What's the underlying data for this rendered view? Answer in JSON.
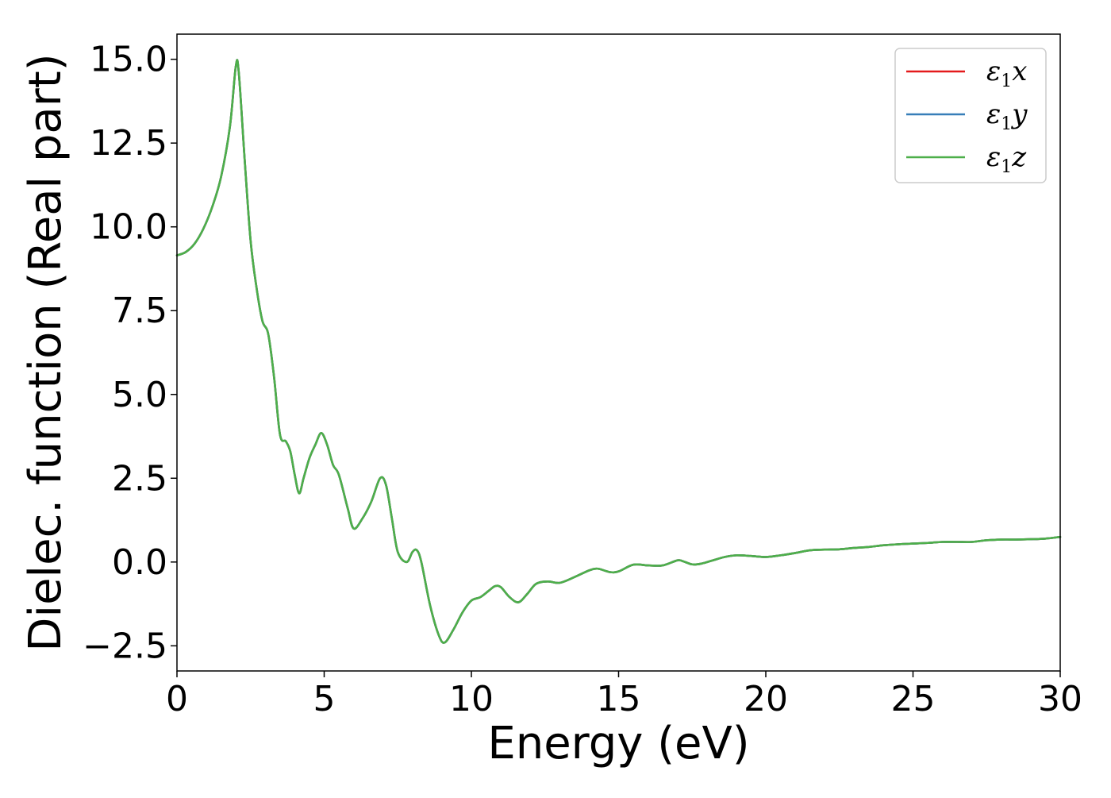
{
  "chart_data": {
    "type": "line",
    "title": "",
    "xlabel": "Energy (eV)",
    "ylabel": "Dielec. function (Real part)",
    "xlim": [
      0,
      30
    ],
    "ylim": [
      -3.25,
      15.75
    ],
    "xticks": [
      0,
      5,
      10,
      15,
      20,
      25,
      30
    ],
    "xtick_labels": [
      "0",
      "5",
      "10",
      "15",
      "20",
      "25",
      "30"
    ],
    "yticks": [
      -2.5,
      0.0,
      2.5,
      5.0,
      7.5,
      10.0,
      12.5,
      15.0
    ],
    "ytick_labels": [
      "−2.5",
      "0.0",
      "2.5",
      "5.0",
      "7.5",
      "10.0",
      "12.5",
      "15.0"
    ],
    "grid": false,
    "legend_position": "top-right",
    "x": [
      0.0,
      0.3,
      0.6,
      0.9,
      1.2,
      1.5,
      1.8,
      2.0,
      2.1,
      2.3,
      2.5,
      2.7,
      2.9,
      3.1,
      3.3,
      3.5,
      3.7,
      3.85,
      4.0,
      4.15,
      4.3,
      4.5,
      4.7,
      4.9,
      5.1,
      5.3,
      5.5,
      5.8,
      6.0,
      6.3,
      6.6,
      6.9,
      7.1,
      7.3,
      7.5,
      7.8,
      8.0,
      8.15,
      8.3,
      8.6,
      8.9,
      9.1,
      9.4,
      9.7,
      10.0,
      10.3,
      10.6,
      10.8,
      11.0,
      11.3,
      11.6,
      11.9,
      12.2,
      12.6,
      13.0,
      13.5,
      14.0,
      14.3,
      14.7,
      15.0,
      15.5,
      16.0,
      16.5,
      17.0,
      17.2,
      17.5,
      17.8,
      18.2,
      18.6,
      19.0,
      19.5,
      20.0,
      20.5,
      21.0,
      21.5,
      22.0,
      22.5,
      23.0,
      23.5,
      24.0,
      24.5,
      25.0,
      25.5,
      26.0,
      26.5,
      27.0,
      27.5,
      28.0,
      28.5,
      29.0,
      29.5,
      30.0
    ],
    "series": [
      {
        "name": "ε₁x",
        "label_base": "ε",
        "label_sub": "1",
        "label_end": "x",
        "color": "#e41a1c",
        "values": [
          9.15,
          9.25,
          9.5,
          9.95,
          10.6,
          11.5,
          13.0,
          14.8,
          14.6,
          12.0,
          9.6,
          8.2,
          7.2,
          6.8,
          5.5,
          3.8,
          3.6,
          3.3,
          2.6,
          2.05,
          2.5,
          3.1,
          3.5,
          3.85,
          3.5,
          2.9,
          2.6,
          1.6,
          1.0,
          1.3,
          1.8,
          2.5,
          2.3,
          1.3,
          0.3,
          0.0,
          0.3,
          0.35,
          0.0,
          -1.3,
          -2.2,
          -2.4,
          -2.0,
          -1.5,
          -1.15,
          -1.05,
          -0.85,
          -0.72,
          -0.75,
          -1.05,
          -1.2,
          -0.95,
          -0.65,
          -0.58,
          -0.62,
          -0.45,
          -0.25,
          -0.2,
          -0.3,
          -0.28,
          -0.08,
          -0.1,
          -0.1,
          0.05,
          0.02,
          -0.07,
          -0.05,
          0.05,
          0.15,
          0.2,
          0.18,
          0.15,
          0.2,
          0.27,
          0.35,
          0.37,
          0.38,
          0.42,
          0.45,
          0.5,
          0.53,
          0.55,
          0.57,
          0.6,
          0.6,
          0.6,
          0.65,
          0.67,
          0.67,
          0.68,
          0.7,
          0.75
        ]
      },
      {
        "name": "ε₁y",
        "label_base": "ε",
        "label_sub": "1",
        "label_end": "y",
        "color": "#377eb8",
        "values": [
          9.15,
          9.25,
          9.5,
          9.95,
          10.6,
          11.5,
          13.0,
          14.8,
          14.6,
          12.0,
          9.6,
          8.2,
          7.2,
          6.8,
          5.5,
          3.8,
          3.6,
          3.3,
          2.6,
          2.05,
          2.5,
          3.1,
          3.5,
          3.85,
          3.5,
          2.9,
          2.6,
          1.6,
          1.0,
          1.3,
          1.8,
          2.5,
          2.3,
          1.3,
          0.3,
          0.0,
          0.3,
          0.35,
          0.0,
          -1.3,
          -2.2,
          -2.4,
          -2.0,
          -1.5,
          -1.15,
          -1.05,
          -0.85,
          -0.72,
          -0.75,
          -1.05,
          -1.2,
          -0.95,
          -0.65,
          -0.58,
          -0.62,
          -0.45,
          -0.25,
          -0.2,
          -0.3,
          -0.28,
          -0.08,
          -0.1,
          -0.1,
          0.05,
          0.02,
          -0.07,
          -0.05,
          0.05,
          0.15,
          0.2,
          0.18,
          0.15,
          0.2,
          0.27,
          0.35,
          0.37,
          0.38,
          0.42,
          0.45,
          0.5,
          0.53,
          0.55,
          0.57,
          0.6,
          0.6,
          0.6,
          0.65,
          0.67,
          0.67,
          0.68,
          0.7,
          0.75
        ]
      },
      {
        "name": "ε₁z",
        "label_base": "ε",
        "label_sub": "1",
        "label_end": "z",
        "color": "#4daf4a",
        "values": [
          9.15,
          9.25,
          9.5,
          9.95,
          10.6,
          11.5,
          13.0,
          14.8,
          14.6,
          12.0,
          9.6,
          8.2,
          7.2,
          6.8,
          5.5,
          3.8,
          3.6,
          3.3,
          2.6,
          2.05,
          2.5,
          3.1,
          3.5,
          3.85,
          3.5,
          2.9,
          2.6,
          1.6,
          1.0,
          1.3,
          1.8,
          2.5,
          2.3,
          1.3,
          0.3,
          0.0,
          0.3,
          0.35,
          0.0,
          -1.3,
          -2.2,
          -2.4,
          -2.0,
          -1.5,
          -1.15,
          -1.05,
          -0.85,
          -0.72,
          -0.75,
          -1.05,
          -1.2,
          -0.95,
          -0.65,
          -0.58,
          -0.62,
          -0.45,
          -0.25,
          -0.2,
          -0.3,
          -0.28,
          -0.08,
          -0.1,
          -0.1,
          0.05,
          0.02,
          -0.07,
          -0.05,
          0.05,
          0.15,
          0.2,
          0.18,
          0.15,
          0.2,
          0.27,
          0.35,
          0.37,
          0.38,
          0.42,
          0.45,
          0.5,
          0.53,
          0.55,
          0.57,
          0.6,
          0.6,
          0.6,
          0.65,
          0.67,
          0.67,
          0.68,
          0.7,
          0.75
        ]
      }
    ]
  }
}
